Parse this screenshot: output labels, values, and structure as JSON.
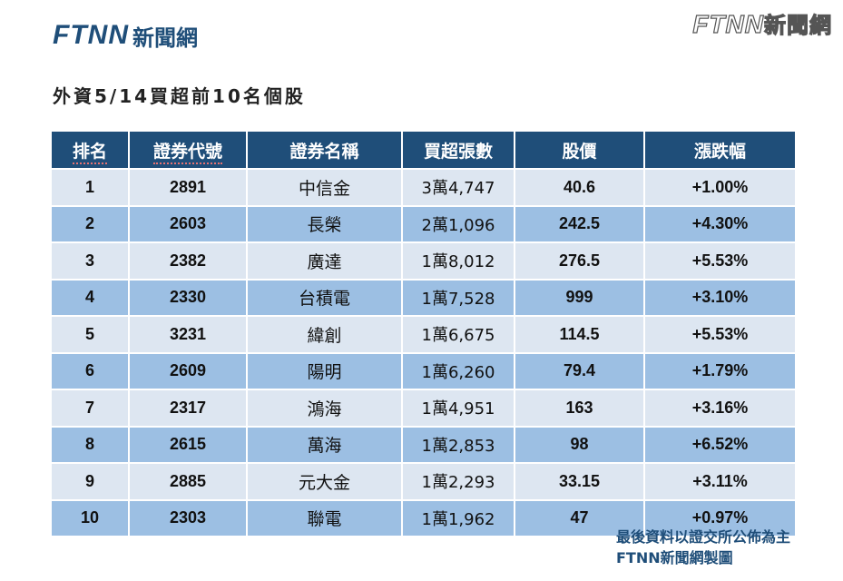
{
  "logo": {
    "brand": "FTNN",
    "name_cn": "新聞網"
  },
  "watermark": {
    "brand": "FTNN",
    "name_cn": "新聞網"
  },
  "title": "外資5/14買超前10名個股",
  "table": {
    "headers": [
      "排名",
      "證券代號",
      "證券名稱",
      "買超張數",
      "股價",
      "漲跌幅"
    ],
    "rows": [
      [
        "1",
        "2891",
        "中信金",
        "3萬4,747",
        "40.6",
        "+1.00%"
      ],
      [
        "2",
        "2603",
        "長榮",
        "2萬1,096",
        "242.5",
        "+4.30%"
      ],
      [
        "3",
        "2382",
        "廣達",
        "1萬8,012",
        "276.5",
        "+5.53%"
      ],
      [
        "4",
        "2330",
        "台積電",
        "1萬7,528",
        "999",
        "+3.10%"
      ],
      [
        "5",
        "3231",
        "緯創",
        "1萬6,675",
        "114.5",
        "+5.53%"
      ],
      [
        "6",
        "2609",
        "陽明",
        "1萬6,260",
        "79.4",
        "+1.79%"
      ],
      [
        "7",
        "2317",
        "鴻海",
        "1萬4,951",
        "163",
        "+3.16%"
      ],
      [
        "8",
        "2615",
        "萬海",
        "1萬2,853",
        "98",
        "+6.52%"
      ],
      [
        "9",
        "2885",
        "元大金",
        "1萬2,293",
        "33.15",
        "+3.11%"
      ],
      [
        "10",
        "2303",
        "聯電",
        "1萬1,962",
        "47",
        "+0.97%"
      ]
    ]
  },
  "footnote": {
    "line1": "最後資料以證交所公佈為主",
    "line2": "FTNN新聞網製圖"
  },
  "colors": {
    "header_bg": "#1f4e79",
    "row_light": "#dde6f1",
    "row_dark": "#9cbfe3",
    "accent_text": "#1f4e79",
    "logo_dot": "#f39c12"
  }
}
